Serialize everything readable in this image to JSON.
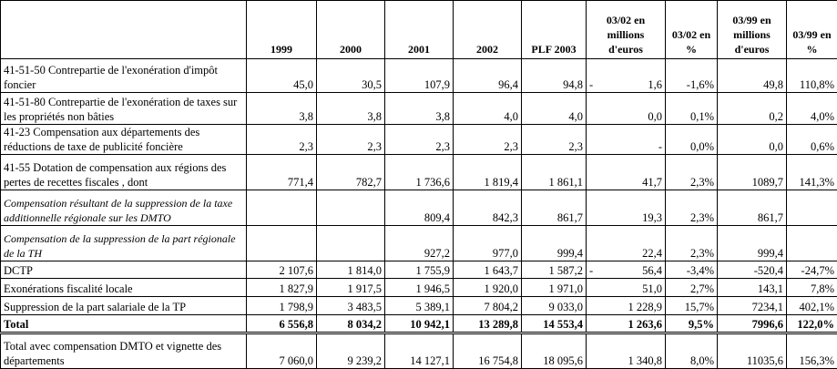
{
  "table": {
    "header": [
      null,
      "1999",
      "2000",
      "2001",
      "2002",
      "PLF 2003",
      "03/02 en millions d'euros",
      "03/02 en %",
      "03/99 en millions d'euros",
      "03/99 en %"
    ],
    "rows": [
      {
        "label": "41-51-50 Contrepartie de l'exonération d'impôt foncier",
        "cells": [
          "45,0",
          "30,5",
          "107,9",
          "96,4",
          "94,8",
          {
            "sign": "-",
            "amount": "1,6"
          },
          "-1,6%",
          "49,8",
          "110,8%"
        ]
      },
      {
        "label": "41-51-80 Contrepartie de l'exonération de taxes sur les propriétés non bâties",
        "cells": [
          "3,8",
          "3,8",
          "3,8",
          "4,0",
          "4,0",
          "0,0",
          "0,1%",
          "0,2",
          "4,0%"
        ]
      },
      {
        "label": "41-23 Compensation aux départements des réductions de taxe de publicité foncière",
        "cells": [
          "2,3",
          "2,3",
          "2,3",
          "2,3",
          "2,3",
          "-",
          "0,0%",
          "0,0",
          "0,6%"
        ]
      },
      {
        "label": "41-55 Dotation de compensation aux régions des pertes de recettes fiscales , dont",
        "cells": [
          "771,4",
          "782,7",
          "1 736,6",
          "1 819,4",
          "1 861,1",
          "41,7",
          "2,3%",
          "1089,7",
          "141,3%"
        ]
      },
      {
        "label": "Compensation résultant de la suppression de la taxe additionnelle régionale sur les DMTO",
        "style": "italic",
        "cells": [
          null,
          null,
          "809,4",
          "842,3",
          "861,7",
          "19,3",
          "2,3%",
          "861,7",
          null
        ]
      },
      {
        "label": "Compensation de la suppression de la part régionale de la TH",
        "style": "italic",
        "cells": [
          null,
          null,
          "927,2",
          "977,0",
          "999,4",
          "22,4",
          "2,3%",
          "999,4",
          null
        ]
      },
      {
        "label": "DCTP",
        "cells": [
          "2 107,6",
          "1 814,0",
          "1 755,9",
          "1 643,7",
          "1 587,2",
          {
            "sign": "-",
            "amount": "56,4"
          },
          "-3,4%",
          "-520,4",
          "-24,7%"
        ]
      },
      {
        "label": "Exonérations fiscalité locale",
        "cells": [
          "1 827,9",
          "1 917,5",
          "1 946,5",
          "1 920,0",
          "1 971,0",
          "51,0",
          "2,7%",
          "143,1",
          "7,8%"
        ]
      },
      {
        "label": "Suppression de la part salariale de la TP",
        "cells": [
          "1 798,9",
          "3 483,5",
          "5 389,1",
          "7 804,2",
          "9 033,0",
          "1 228,9",
          "15,7%",
          "7234,1",
          "402,1%"
        ]
      },
      {
        "label": "Total",
        "style": "bold",
        "cells": [
          "6 556,8",
          "8 034,2",
          "10 942,1",
          "13 289,8",
          "14 553,4",
          "1 263,6",
          "9,5%",
          "7996,6",
          "122,0%"
        ]
      },
      {
        "label": "Total avec compensation DMTO et vignette des départements",
        "cells": [
          "7 060,0",
          "9 239,2",
          "14 127,1",
          "16 754,8",
          "18 095,6",
          "1 340,8",
          "8,0%",
          "11035,6",
          "156,3%"
        ]
      }
    ]
  }
}
